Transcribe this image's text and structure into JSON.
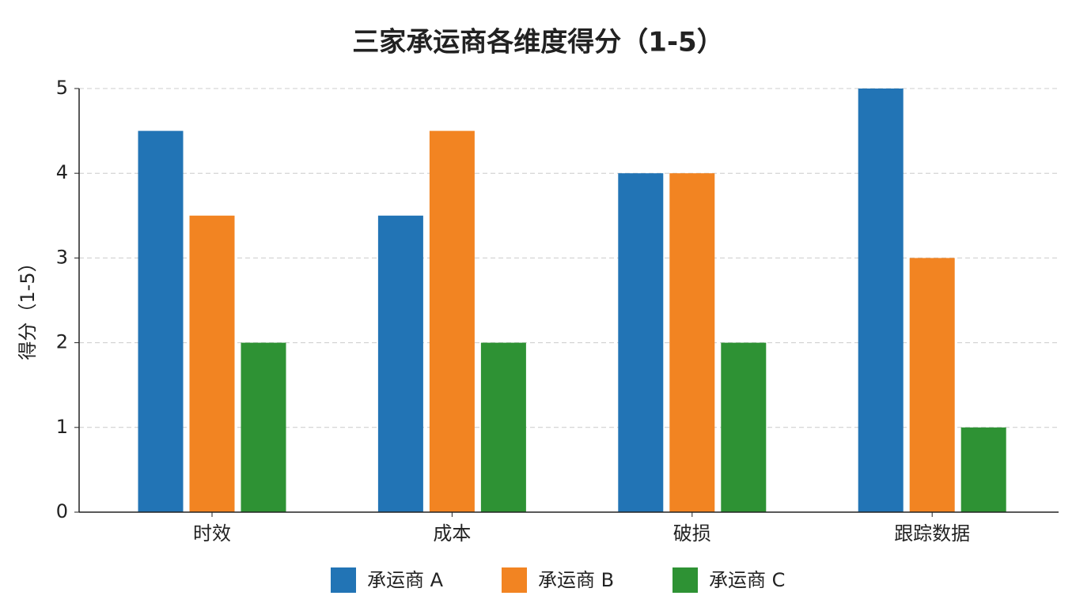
{
  "chart_data": {
    "type": "bar",
    "title": "三家承运商各维度得分（1-5）",
    "y_label": "得分（1-5）",
    "categories": [
      "时效",
      "成本",
      "破损",
      "跟踪数据"
    ],
    "series": [
      {
        "name": "承运商 A",
        "color": "#2274b5",
        "values": [
          4.5,
          3.5,
          4,
          5
        ]
      },
      {
        "name": "承运商 B",
        "color": "#f28422",
        "values": [
          3.5,
          4.5,
          4,
          3
        ]
      },
      {
        "name": "承运商 C",
        "color": "#2e9234",
        "values": [
          2,
          2,
          2,
          1
        ]
      }
    ],
    "ylim": [
      0,
      5
    ],
    "yticks": [
      0,
      1,
      2,
      3,
      4,
      5
    ],
    "grid": true,
    "legend": "bottom"
  }
}
